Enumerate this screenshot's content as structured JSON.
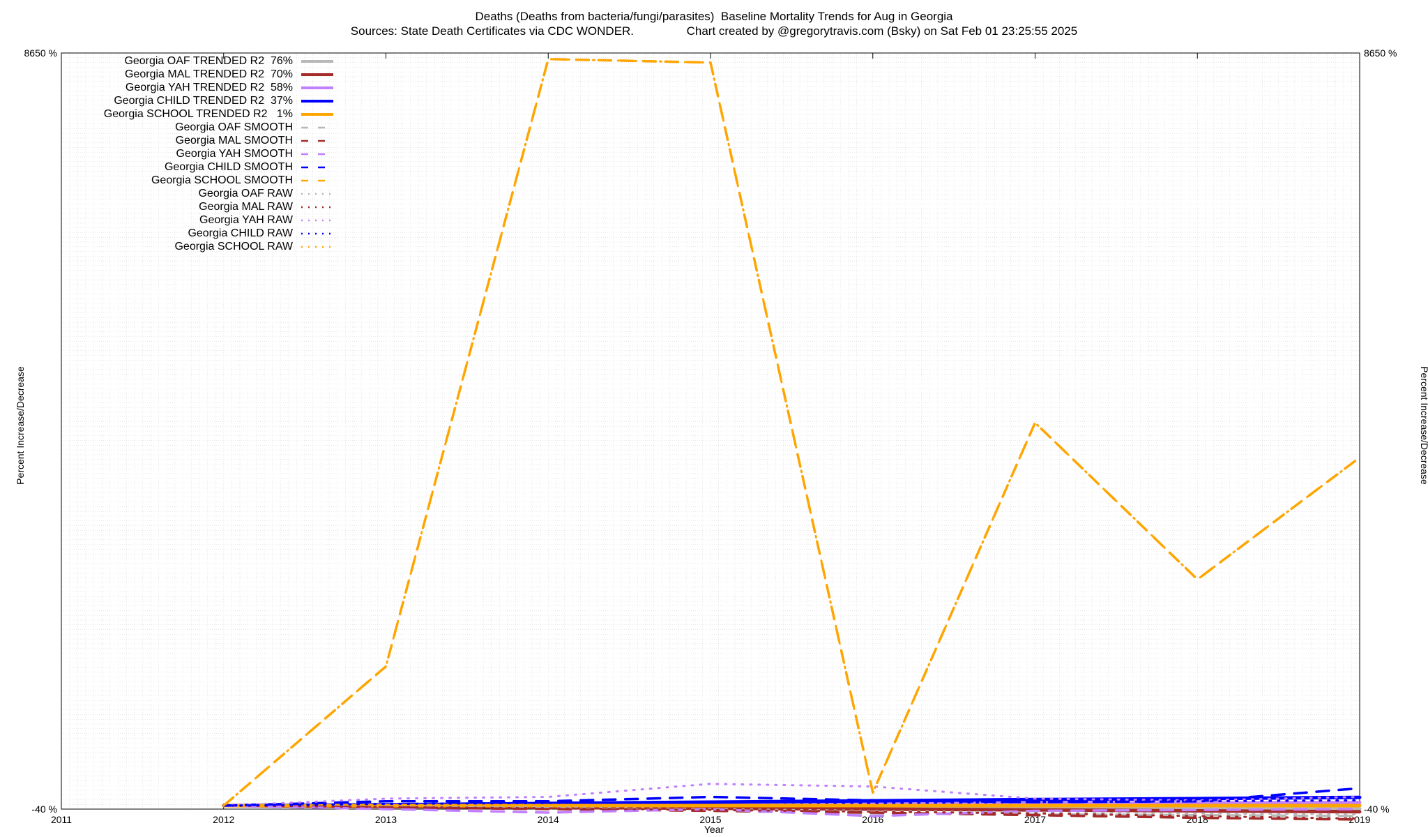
{
  "title": "Deaths (Deaths from bacteria/fungi/parasites)  Baseline Mortality Trends for Aug in Georgia",
  "subtitle": "Sources: State Death Certificates via CDC WONDER.                Chart created by @gregorytravis.com (Bsky) on Sat Feb 01 23:25:55 2025",
  "chart_data": {
    "type": "line",
    "xlabel": "Year",
    "ylabel": "Percent Increase/Decrease",
    "xlim": [
      2011,
      2019
    ],
    "ylim": [
      -40,
      8650
    ],
    "x_ticks": [
      "2011",
      "2012",
      "2013",
      "2014",
      "2015",
      "2016",
      "2017",
      "2018",
      "2019"
    ],
    "y_tick_label_top": "8650 %",
    "y_tick_label_bottom": "-40 %",
    "grid": true,
    "legend_position": "top-left",
    "x": [
      2012,
      2013,
      2014,
      2015,
      2016,
      2017,
      2018,
      2019
    ],
    "series": [
      {
        "name": "Georgia OAF TRENDED R2  76%",
        "style": "solid",
        "color": "#b8b8b8",
        "values": [
          0,
          -5,
          -10,
          -15,
          -20,
          -25,
          -30,
          -35
        ]
      },
      {
        "name": "Georgia MAL TRENDED R2  70%",
        "style": "solid",
        "color": "#a52a2a",
        "values": [
          0,
          -10,
          -20,
          -30,
          -40,
          -50,
          -60,
          -70
        ]
      },
      {
        "name": "Georgia YAH TRENDED R2  58%",
        "style": "solid",
        "color": "#c080ff",
        "values": [
          0,
          5,
          10,
          15,
          20,
          25,
          30,
          35
        ]
      },
      {
        "name": "Georgia CHILD TRENDED R2  37%",
        "style": "solid",
        "color": "#0000ff",
        "values": [
          0,
          10,
          25,
          40,
          55,
          70,
          80,
          95
        ]
      },
      {
        "name": "Georgia SCHOOL TRENDED R2   1%",
        "style": "solid",
        "color": "#ffa500",
        "values": [
          0,
          0,
          0,
          0,
          0,
          0,
          0,
          0
        ]
      },
      {
        "name": "Georgia OAF SMOOTH",
        "style": "dash",
        "color": "#b8b8b8",
        "values": [
          0,
          -15,
          -30,
          -60,
          -90,
          -100,
          -110,
          -120
        ]
      },
      {
        "name": "Georgia MAL SMOOTH",
        "style": "dash",
        "color": "#a52a2a",
        "values": [
          0,
          -20,
          -40,
          -60,
          -80,
          -110,
          -140,
          -160
        ]
      },
      {
        "name": "Georgia YAH SMOOTH",
        "style": "dash",
        "color": "#c080ff",
        "values": [
          0,
          -40,
          -80,
          -40,
          -120,
          -60,
          -50,
          -40
        ]
      },
      {
        "name": "Georgia CHILD SMOOTH",
        "style": "dash",
        "color": "#0000ff",
        "values": [
          0,
          50,
          50,
          100,
          60,
          40,
          50,
          200
        ]
      },
      {
        "name": "Georgia SCHOOL SMOOTH",
        "style": "dash",
        "color": "#ffa500",
        "values": [
          0,
          1600,
          8580,
          8540,
          150,
          4400,
          2600,
          4000
        ]
      },
      {
        "name": "Georgia OAF RAW",
        "style": "dot",
        "color": "#b8b8b8",
        "values": [
          0,
          -10,
          -20,
          -40,
          -60,
          -80,
          -90,
          -100
        ]
      },
      {
        "name": "Georgia MAL RAW",
        "style": "dot",
        "color": "#a52a2a",
        "values": [
          0,
          -15,
          -30,
          -50,
          -70,
          -90,
          -120,
          -150
        ]
      },
      {
        "name": "Georgia YAH RAW",
        "style": "dot",
        "color": "#c080ff",
        "values": [
          0,
          80,
          100,
          250,
          220,
          80,
          60,
          100
        ]
      },
      {
        "name": "Georgia CHILD RAW",
        "style": "dot",
        "color": "#0000ff",
        "values": [
          0,
          20,
          30,
          40,
          30,
          40,
          50,
          60
        ]
      },
      {
        "name": "Georgia SCHOOL RAW",
        "style": "dot",
        "color": "#ffa500",
        "values": [
          0,
          1600,
          8580,
          8540,
          150,
          4400,
          2600,
          4000
        ]
      }
    ]
  }
}
